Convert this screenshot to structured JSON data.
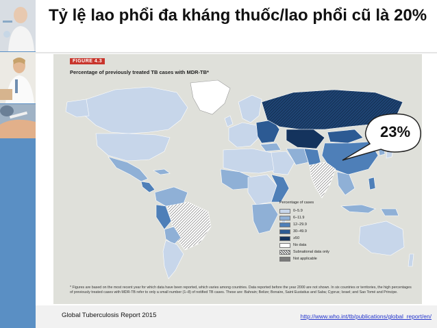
{
  "title": "Tỷ lệ lao phổi đa kháng thuốc/lao phổi cũ là 20%",
  "figure": {
    "label": "FIGURE 4.3",
    "title": "Percentage of previously treated TB cases with MDR-TB*",
    "legend_title": "Percentage of cases",
    "legend": [
      {
        "label": "0–5.9",
        "color": "#c7d6ea"
      },
      {
        "label": "6–11.9",
        "color": "#8fb0d6"
      },
      {
        "label": "12–29.9",
        "color": "#4e7fb8"
      },
      {
        "label": "30–49.9",
        "color": "#2c5a93"
      },
      {
        "label": "≥50",
        "color": "#14335d"
      },
      {
        "label": "No data",
        "color": "#ffffff"
      },
      {
        "label": "Subnational data only",
        "color": "hatched"
      },
      {
        "label": "Not applicable",
        "color": "#7a7a7a"
      }
    ],
    "footnote": "* Figures are based on the most recent year for which data have been reported, which varies among countries. Data reported before the year 2000 are not shown. In six countries or territories, the high percentages of previously treated cases with MDR-TB refer to only a small number (1–8) of notified TB cases. These are: Bahrain; Belize; Bonaire, Saint Eustatius and Saba; Cyprus; Israel; and Sao Tomé and Principe."
  },
  "callout": "23%",
  "source": "Global Tuberculosis Report 2015",
  "link": "http://www.who.int/tb/publications/global_report/en/"
}
